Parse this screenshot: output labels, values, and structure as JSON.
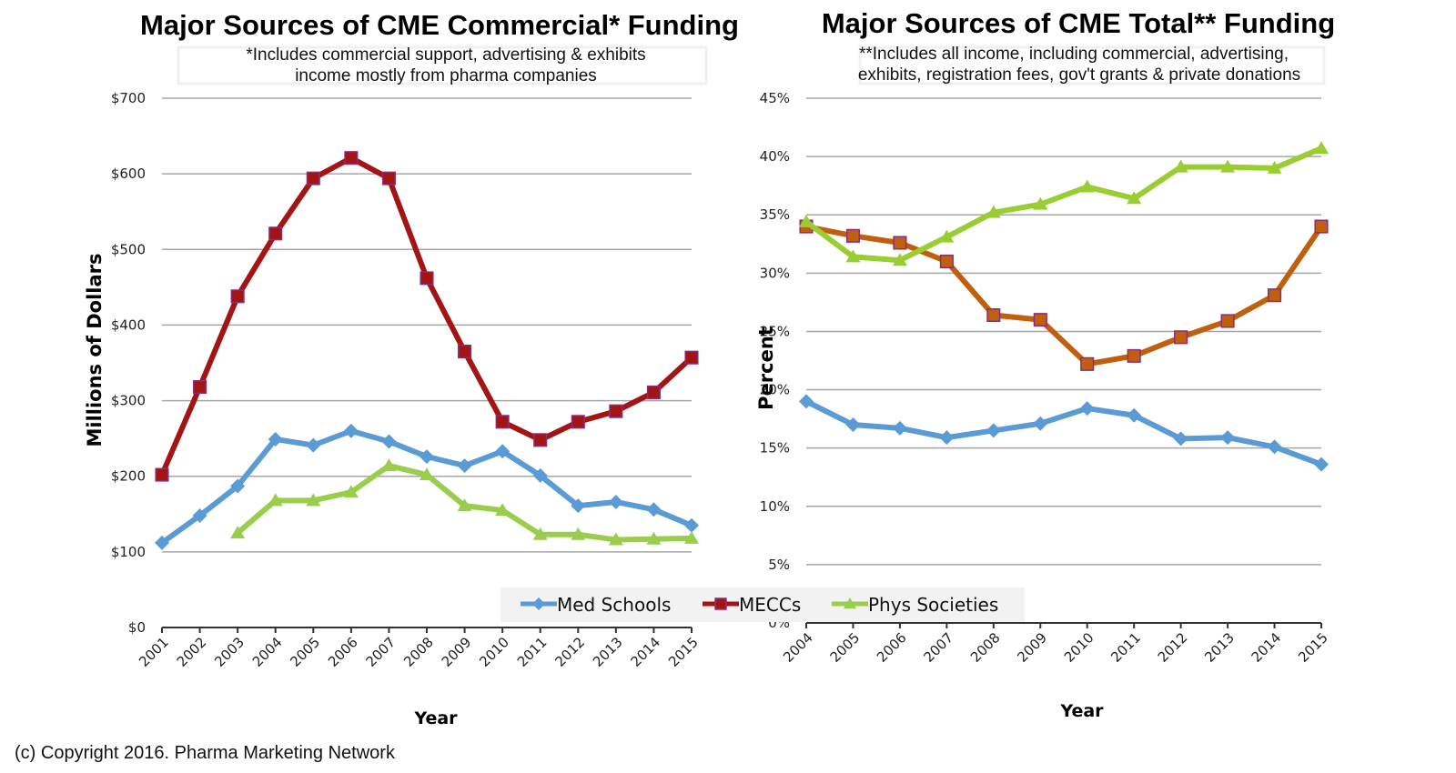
{
  "footer": {
    "copyright": "(c) Copyright 2016. Pharma Marketing Network"
  },
  "legend": {
    "items": [
      {
        "label": "Med Schools",
        "color": "#5b9bd5",
        "marker": "diamond"
      },
      {
        "label": "MECCs",
        "color": "#a31515",
        "marker": "square"
      },
      {
        "label": "Phys Societies",
        "color": "#9acd4c",
        "marker": "triangle"
      }
    ]
  },
  "chart_data": [
    {
      "type": "line",
      "title": "Major Sources of CME Commercial* Funding",
      "subtitle_lines": [
        "*Includes commercial support, advertising & exhibits",
        "income mostly from pharma companies"
      ],
      "xlabel": "Year",
      "ylabel": "Millions of Dollars",
      "ylim": [
        0,
        700
      ],
      "yticks": [
        0,
        100,
        200,
        300,
        400,
        500,
        600,
        700
      ],
      "ytick_labels": [
        "$0",
        "$100",
        "$200",
        "$300",
        "$400",
        "$500",
        "$600",
        "$700"
      ],
      "grid": true,
      "categories": [
        "2001",
        "2002",
        "2003",
        "2004",
        "2005",
        "2006",
        "2007",
        "2008",
        "2009",
        "2010",
        "2011",
        "2012",
        "2013",
        "2014",
        "2015"
      ],
      "series": [
        {
          "name": "Med Schools",
          "color": "#5b9bd5",
          "marker": "diamond",
          "values": [
            112,
            148,
            187,
            249,
            241,
            260,
            246,
            226,
            214,
            233,
            201,
            161,
            166,
            156,
            135
          ]
        },
        {
          "name": "MECCs",
          "color": "#a31515",
          "marker": "square",
          "values": [
            202,
            318,
            438,
            521,
            594,
            621,
            594,
            462,
            365,
            272,
            248,
            272,
            286,
            311,
            357
          ]
        },
        {
          "name": "Phys Societies",
          "color": "#9acd4c",
          "marker": "triangle",
          "values": [
            null,
            null,
            125,
            168,
            168,
            179,
            214,
            202,
            161,
            155,
            123,
            123,
            116,
            117,
            118
          ]
        }
      ]
    },
    {
      "type": "line",
      "title": "Major Sources of CME Total** Funding",
      "subtitle_lines": [
        "**Includes all income, including commercial, advertising,",
        "exhibits, registration fees, gov't grants & private donations"
      ],
      "xlabel": "Year",
      "ylabel": "Percent",
      "ylim": [
        0,
        45
      ],
      "yticks": [
        0,
        5,
        10,
        15,
        20,
        25,
        30,
        35,
        40,
        45
      ],
      "ytick_labels": [
        "0%",
        "5%",
        "10%",
        "15%",
        "20%",
        "25%",
        "30%",
        "35%",
        "40%",
        "45%"
      ],
      "grid": true,
      "categories": [
        "2004",
        "2005",
        "2006",
        "2007",
        "2008",
        "2009",
        "2010",
        "2011",
        "2012",
        "2013",
        "2014",
        "2015"
      ],
      "series": [
        {
          "name": "Med Schools",
          "color": "#5b9bd5",
          "marker": "diamond",
          "values": [
            19.0,
            17.0,
            16.7,
            15.9,
            16.5,
            17.1,
            18.4,
            17.8,
            15.8,
            15.9,
            15.1,
            13.6
          ]
        },
        {
          "name": "MECCs",
          "color": "#c0600f",
          "marker": "square",
          "values": [
            34.0,
            33.2,
            32.6,
            31.0,
            26.4,
            26.0,
            22.2,
            22.9,
            24.5,
            25.9,
            28.1,
            34.0
          ]
        },
        {
          "name": "Phys Societies",
          "color": "#9acd32",
          "marker": "triangle",
          "values": [
            34.4,
            31.4,
            31.1,
            33.1,
            35.2,
            35.9,
            37.4,
            36.4,
            39.1,
            39.1,
            39.0,
            40.7
          ]
        }
      ]
    }
  ]
}
